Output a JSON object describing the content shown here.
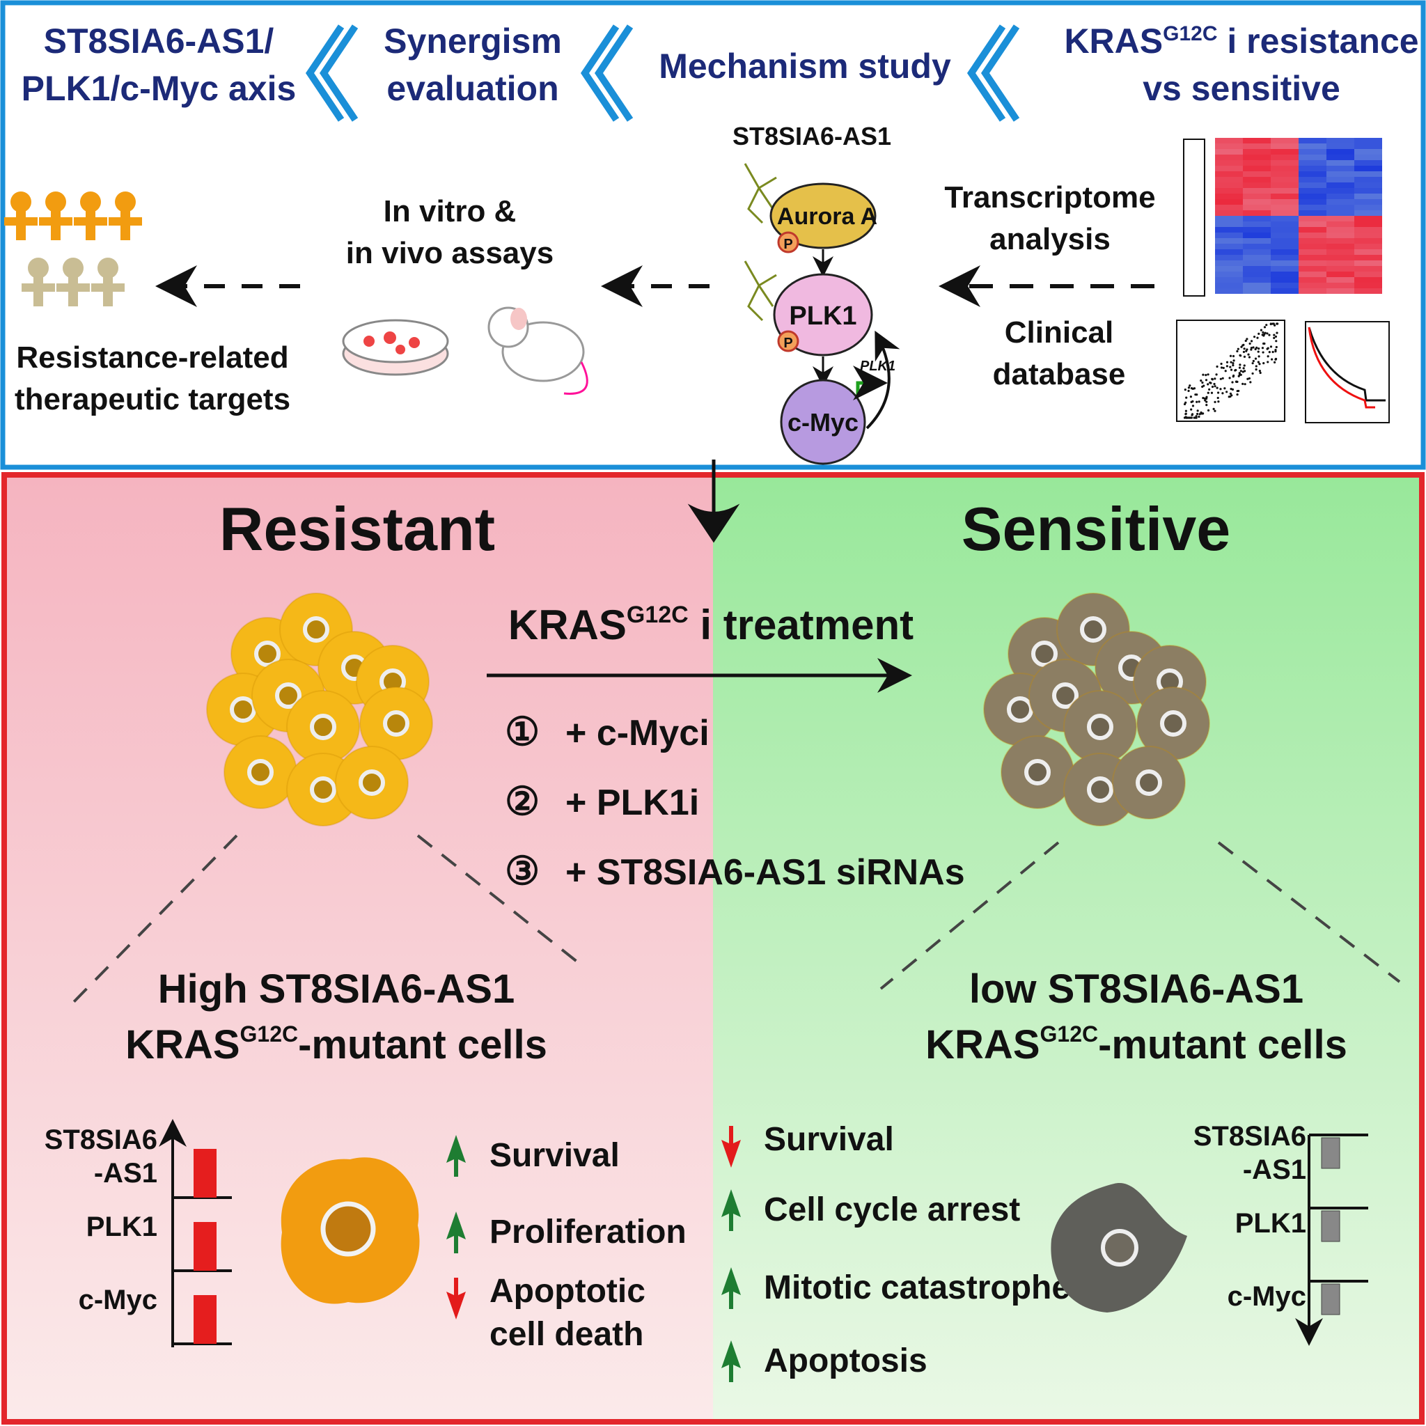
{
  "colors": {
    "top_border": "#1a8fd8",
    "bottom_border": "#e3262b",
    "resistant_bg": "#f7c4cc",
    "sensitive_bg": "#b9efb9",
    "header_text": "#1c2a78",
    "up_arrow": "#1e7d32",
    "down_arrow": "#e31b1b"
  },
  "header": {
    "step1": [
      "ST8SIA6-AS1/",
      "PLK1/c-Myc axis"
    ],
    "step2": [
      "Synergism",
      "evaluation"
    ],
    "step3": "Mechanism study",
    "step4": {
      "line1_pre": "KRAS",
      "line1_sup": "G12C",
      "line1_post": " i resistance",
      "line2": "vs sensitive"
    },
    "chevron_icon": "double-chevron-left-icon"
  },
  "mechanism": {
    "lncrna": "ST8SIA6-AS1",
    "aurora": "Aurora A",
    "plk1": "PLK1",
    "cmyc": "c-Myc",
    "phospho": "P",
    "gene": "PLK1"
  },
  "workflow": {
    "transcriptome": [
      "Transcriptome",
      "analysis"
    ],
    "clinical": [
      "Clinical",
      "database"
    ],
    "assays": [
      "In vitro &",
      "in vivo assays"
    ],
    "targets": [
      "Resistance-related",
      "therapeutic targets"
    ]
  },
  "resistant": {
    "title": "Resistant",
    "cells_line1": "High ST8SIA6-AS1",
    "cells_line2_pre": "KRAS",
    "cells_line2_sup": "G12C",
    "cells_line2_post": "-mutant cells",
    "bars": [
      {
        "label": [
          "ST8SIA6",
          "-AS1"
        ],
        "level": "high"
      },
      {
        "label": [
          "PLK1"
        ],
        "level": "high"
      },
      {
        "label": [
          "c-Myc"
        ],
        "level": "high"
      }
    ],
    "effects": [
      {
        "text": [
          "Survival"
        ],
        "dir": "up"
      },
      {
        "text": [
          "Proliferation"
        ],
        "dir": "up"
      },
      {
        "text": [
          "Apoptotic",
          "cell death"
        ],
        "dir": "down"
      }
    ]
  },
  "sensitive": {
    "title": "Sensitive",
    "cells_line1": "low ST8SIA6-AS1",
    "cells_line2_pre": "KRAS",
    "cells_line2_sup": "G12C",
    "cells_line2_post": "-mutant cells",
    "bars": [
      {
        "label": [
          "ST8SIA6",
          "-AS1"
        ],
        "level": "low"
      },
      {
        "label": [
          "PLK1"
        ],
        "level": "low"
      },
      {
        "label": [
          "c-Myc"
        ],
        "level": "low"
      }
    ],
    "effects": [
      {
        "text": [
          "Survival"
        ],
        "dir": "down"
      },
      {
        "text": [
          "Cell cycle arrest"
        ],
        "dir": "up"
      },
      {
        "text": [
          "Mitotic catastrophe"
        ],
        "dir": "up"
      },
      {
        "text": [
          "Apoptosis"
        ],
        "dir": "up"
      }
    ]
  },
  "treatment": {
    "pre": "KRAS",
    "sup": "G12C",
    "post": " i treatment",
    "options": [
      {
        "num": "①",
        "text": "+ c-Myci"
      },
      {
        "num": "②",
        "text": "+ PLK1i"
      },
      {
        "num": "③",
        "text": "+ ST8SIA6-AS1 siRNAs"
      }
    ]
  }
}
